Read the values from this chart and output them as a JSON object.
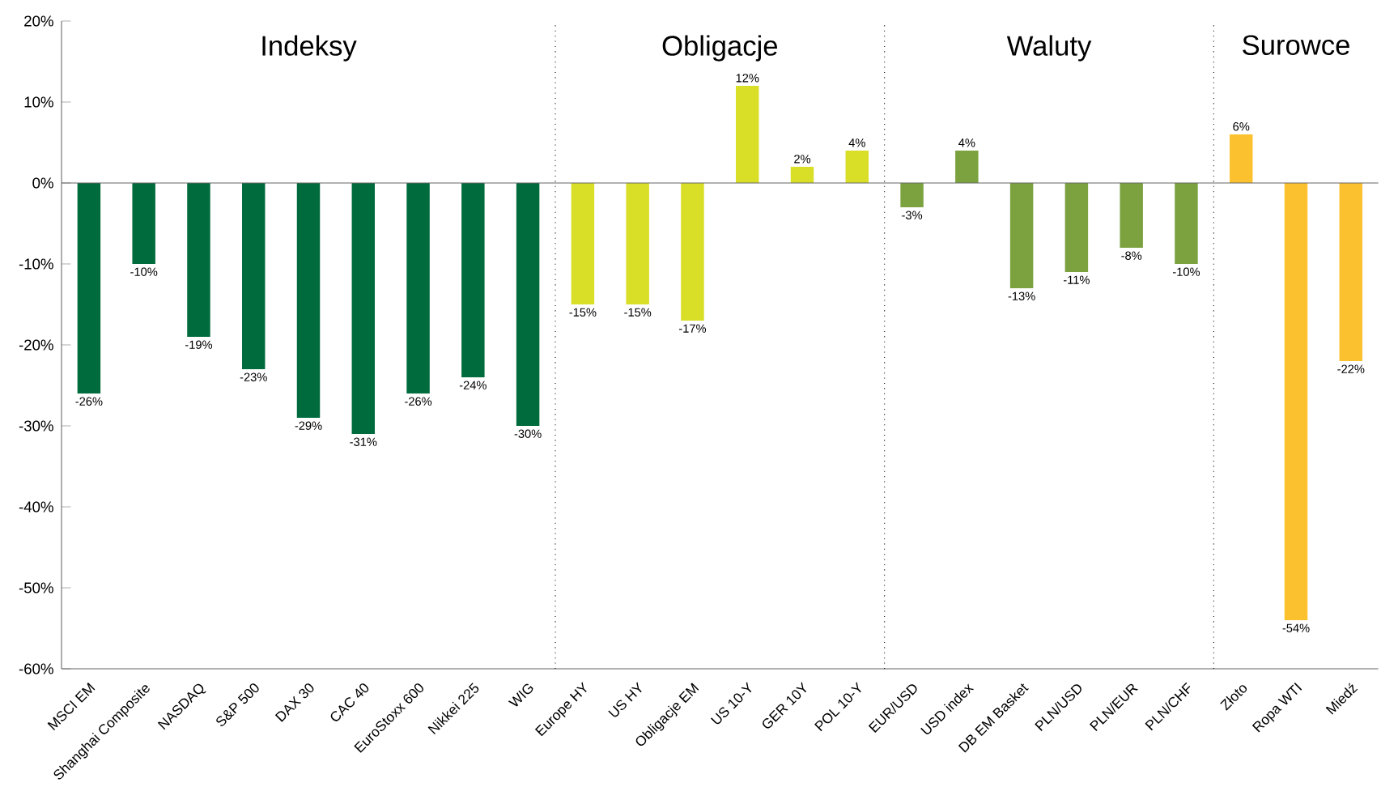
{
  "chart_data": {
    "type": "bar",
    "categories": [
      "MSCI EM",
      "Shanghai Composite",
      "NASDAQ",
      "S&P 500",
      "DAX 30",
      "CAC 40",
      "EuroStoxx 600",
      "Nikkei 225",
      "WIG",
      "Europe HY",
      "US HY",
      "Obligacje EM",
      "US 10-Y",
      "GER 10Y",
      "POL 10-Y",
      "EUR/USD",
      "USD index",
      "DB EM Basket",
      "PLN/USD",
      "PLN/EUR",
      "PLN/CHF",
      "Złoto",
      "Ropa WTI",
      "Miedź"
    ],
    "values": [
      -26,
      -10,
      -19,
      -23,
      -29,
      -31,
      -26,
      -24,
      -30,
      -15,
      -15,
      -17,
      12,
      2,
      4,
      -3,
      4,
      -13,
      -11,
      -8,
      -10,
      6,
      -54,
      -22
    ],
    "value_labels": [
      "-26%",
      "-10%",
      "-19%",
      "-23%",
      "-29%",
      "-31%",
      "-26%",
      "-24%",
      "-30%",
      "-15%",
      "-15%",
      "-17%",
      "12%",
      "2%",
      "4%",
      "-3%",
      "4%",
      "-13%",
      "-11%",
      "-8%",
      "-10%",
      "6%",
      "-54%",
      "-22%"
    ],
    "colors": [
      "#006b3c",
      "#006b3c",
      "#006b3c",
      "#006b3c",
      "#006b3c",
      "#006b3c",
      "#006b3c",
      "#006b3c",
      "#006b3c",
      "#d9de26",
      "#d9de26",
      "#d9de26",
      "#d9de26",
      "#d9de26",
      "#d9de26",
      "#7ba23f",
      "#7ba23f",
      "#7ba23f",
      "#7ba23f",
      "#7ba23f",
      "#7ba23f",
      "#fcc12e",
      "#fcc12e",
      "#fcc12e"
    ],
    "ylim": [
      -60,
      20
    ],
    "yticks": [
      {
        "value": -60,
        "label": "-60%"
      },
      {
        "value": -50,
        "label": "-50%"
      },
      {
        "value": -40,
        "label": "-40%"
      },
      {
        "value": -30,
        "label": "-30%"
      },
      {
        "value": -20,
        "label": "-20%"
      },
      {
        "value": -10,
        "label": "-10%"
      },
      {
        "value": 0,
        "label": "0%"
      },
      {
        "value": 10,
        "label": "10%"
      },
      {
        "value": 20,
        "label": "20%"
      }
    ],
    "annotations": [
      "Indeksy",
      "Obligacje",
      "Waluty",
      "Surowce"
    ]
  }
}
